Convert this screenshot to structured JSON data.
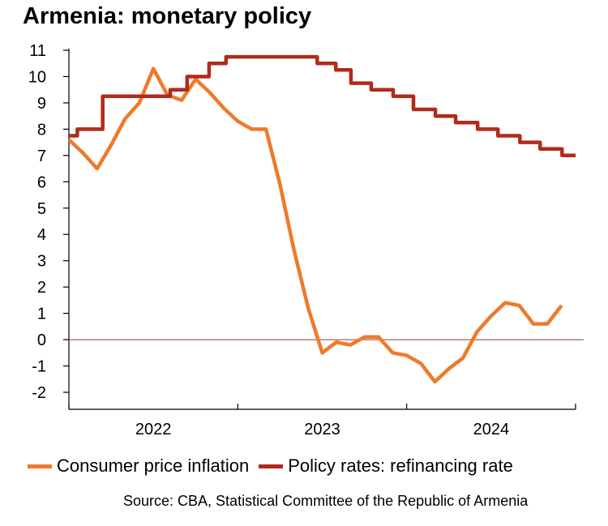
{
  "chart_data": {
    "type": "line",
    "title": "Armenia: monetary policy",
    "xlabel": "",
    "ylabel": "",
    "ylim": [
      -2,
      11
    ],
    "y_ticks": [
      11,
      10,
      9,
      8,
      7,
      6,
      5,
      4,
      3,
      2,
      1,
      0,
      -1,
      -2
    ],
    "x_tick_labels": [
      "2022",
      "2023",
      "2024"
    ],
    "x_range": [
      2022.0,
      2025.0
    ],
    "grid": false,
    "zero_line": true,
    "legend_position": "bottom",
    "source": "Source: CBA, Statistical Committee of the Republic of Armenia",
    "series": [
      {
        "name": "Consumer price inflation",
        "color": "#EE7A2A",
        "x": [
          2022.0,
          2022.083,
          2022.167,
          2022.25,
          2022.333,
          2022.417,
          2022.5,
          2022.583,
          2022.667,
          2022.75,
          2022.833,
          2022.917,
          2023.0,
          2023.083,
          2023.167,
          2023.25,
          2023.333,
          2023.417,
          2023.5,
          2023.583,
          2023.667,
          2023.75,
          2023.833,
          2023.917,
          2024.0,
          2024.083,
          2024.167,
          2024.25,
          2024.333,
          2024.417,
          2024.5,
          2024.583,
          2024.667,
          2024.75,
          2024.833,
          2024.917
        ],
        "values": [
          7.6,
          7.1,
          6.5,
          7.4,
          8.4,
          9.0,
          10.3,
          9.3,
          9.1,
          9.9,
          9.4,
          8.8,
          8.3,
          8.0,
          8.0,
          5.9,
          3.4,
          1.2,
          -0.5,
          -0.1,
          -0.2,
          0.1,
          0.1,
          -0.5,
          -0.6,
          -0.9,
          -1.6,
          -1.1,
          -0.7,
          0.3,
          0.9,
          1.4,
          1.3,
          0.6,
          0.6,
          1.3
        ]
      },
      {
        "name": "Policy rates: refinancing rate",
        "color": "#B22A1C",
        "x": [
          2022.0,
          2022.05,
          2022.05,
          2022.2,
          2022.2,
          2022.6,
          2022.6,
          2022.7,
          2022.7,
          2022.83,
          2022.83,
          2022.93,
          2022.93,
          2023.0,
          2023.0,
          2023.47,
          2023.47,
          2023.58,
          2023.58,
          2023.67,
          2023.67,
          2023.79,
          2023.79,
          2023.92,
          2023.92,
          2024.04,
          2024.04,
          2024.17,
          2024.17,
          2024.29,
          2024.29,
          2024.42,
          2024.42,
          2024.54,
          2024.54,
          2024.67,
          2024.67,
          2024.79,
          2024.79,
          2024.92,
          2024.92,
          2025.0
        ],
        "values": [
          7.75,
          7.75,
          8.0,
          8.0,
          9.25,
          9.25,
          9.5,
          9.5,
          10.0,
          10.0,
          10.5,
          10.5,
          10.75,
          10.75,
          10.75,
          10.75,
          10.5,
          10.5,
          10.25,
          10.25,
          9.75,
          9.75,
          9.5,
          9.5,
          9.25,
          9.25,
          8.75,
          8.75,
          8.5,
          8.5,
          8.25,
          8.25,
          8.0,
          8.0,
          7.75,
          7.75,
          7.5,
          7.5,
          7.25,
          7.25,
          7.0,
          7.0
        ]
      }
    ]
  }
}
